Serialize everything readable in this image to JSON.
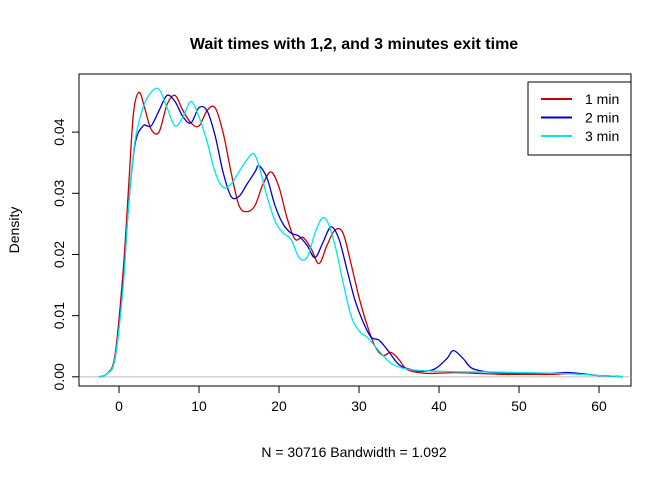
{
  "chart_data": {
    "type": "line",
    "title": "Wait times with 1,2, and 3 minutes exit time",
    "xlabel": "N = 30716   Bandwidth = 1.092",
    "ylabel": "Density",
    "xlim": [
      -5,
      64
    ],
    "ylim": [
      -0.0015,
      0.0495
    ],
    "x_ticks": [
      0,
      10,
      20,
      30,
      40,
      50,
      60
    ],
    "y_ticks": [
      0.0,
      0.01,
      0.02,
      0.03,
      0.04
    ],
    "y_tick_labels": [
      "0.00",
      "0.01",
      "0.02",
      "0.03",
      "0.04"
    ],
    "grid": false,
    "baseline": 0,
    "legend_position": "top-right",
    "series": [
      {
        "name": "1 min",
        "color": "#cc0000",
        "x": [
          -2.5,
          -1.5,
          -0.5,
          0.5,
          1.2,
          1.8,
          2.5,
          3.2,
          4,
          5,
          6,
          7,
          8,
          9,
          10,
          11,
          12,
          13,
          14,
          15,
          16,
          17,
          18,
          19,
          20,
          21,
          22,
          23,
          24,
          25,
          26,
          27,
          28,
          29,
          30,
          31,
          32,
          33,
          34,
          35,
          36,
          38,
          40,
          42,
          44,
          46,
          48,
          50,
          52,
          54,
          56,
          58,
          60,
          62,
          63
        ],
        "y": [
          0.0,
          0.0005,
          0.0035,
          0.017,
          0.031,
          0.043,
          0.0465,
          0.044,
          0.0405,
          0.04,
          0.0445,
          0.046,
          0.0435,
          0.0415,
          0.041,
          0.0435,
          0.044,
          0.04,
          0.0335,
          0.028,
          0.027,
          0.028,
          0.0315,
          0.0335,
          0.031,
          0.026,
          0.0225,
          0.0228,
          0.021,
          0.0185,
          0.0215,
          0.024,
          0.0235,
          0.0185,
          0.013,
          0.0085,
          0.005,
          0.0035,
          0.004,
          0.0028,
          0.0012,
          0.0006,
          0.0006,
          0.0007,
          0.0006,
          0.0005,
          0.0004,
          0.0004,
          0.0004,
          0.0004,
          0.0005,
          0.0004,
          0.0002,
          0.0001,
          0.0
        ]
      },
      {
        "name": "2 min",
        "color": "#0000cc",
        "x": [
          -2.5,
          -1.5,
          -0.5,
          0.5,
          1.2,
          2,
          3,
          4,
          5,
          6,
          7,
          8,
          9,
          10,
          11,
          12,
          13,
          14,
          15,
          16,
          17,
          17.5,
          18.5,
          19.5,
          20.5,
          21.5,
          22.5,
          23.5,
          24.5,
          25.5,
          26.5,
          27.5,
          28.5,
          29.5,
          30.5,
          31.5,
          32.5,
          33.5,
          35,
          36.5,
          38,
          39.5,
          41,
          41.8,
          43,
          44,
          45.5,
          47,
          50,
          54,
          56,
          58,
          60,
          62,
          63
        ],
        "y": [
          0.0,
          0.0005,
          0.003,
          0.015,
          0.028,
          0.038,
          0.041,
          0.041,
          0.0435,
          0.046,
          0.045,
          0.0425,
          0.0415,
          0.044,
          0.0435,
          0.0395,
          0.0335,
          0.0295,
          0.0295,
          0.0315,
          0.0335,
          0.0345,
          0.0325,
          0.028,
          0.025,
          0.0235,
          0.023,
          0.0215,
          0.0195,
          0.022,
          0.0245,
          0.0225,
          0.0175,
          0.0125,
          0.009,
          0.0065,
          0.006,
          0.0045,
          0.002,
          0.0012,
          0.0009,
          0.0013,
          0.003,
          0.0043,
          0.003,
          0.0015,
          0.0009,
          0.0007,
          0.0006,
          0.0006,
          0.0007,
          0.0005,
          0.0002,
          0.0001,
          0.0
        ]
      },
      {
        "name": "3 min",
        "color": "#00e5ee",
        "x": [
          -2.5,
          -1.5,
          -0.5,
          0.5,
          1.2,
          2,
          3,
          4,
          5,
          6,
          7,
          8,
          9,
          10,
          11,
          12,
          13,
          14,
          15,
          16,
          16.8,
          17.5,
          18.5,
          19.5,
          20.5,
          21.5,
          22.5,
          23.5,
          24.5,
          25.3,
          26,
          27,
          28,
          29,
          30,
          31,
          32,
          33,
          34,
          35.5,
          37,
          40,
          43,
          46,
          50,
          54,
          58,
          60,
          62,
          63
        ],
        "y": [
          0.0,
          0.0005,
          0.003,
          0.0145,
          0.028,
          0.0385,
          0.044,
          0.0465,
          0.047,
          0.044,
          0.041,
          0.0425,
          0.045,
          0.0425,
          0.0385,
          0.0335,
          0.031,
          0.0315,
          0.0335,
          0.0355,
          0.0365,
          0.0345,
          0.0295,
          0.0255,
          0.0235,
          0.0225,
          0.0195,
          0.0195,
          0.0235,
          0.0258,
          0.0255,
          0.0215,
          0.0155,
          0.01,
          0.0075,
          0.0065,
          0.005,
          0.0035,
          0.0022,
          0.0014,
          0.0011,
          0.0009,
          0.0008,
          0.0008,
          0.0007,
          0.0006,
          0.0004,
          0.0002,
          0.0001,
          0.0
        ]
      }
    ]
  }
}
